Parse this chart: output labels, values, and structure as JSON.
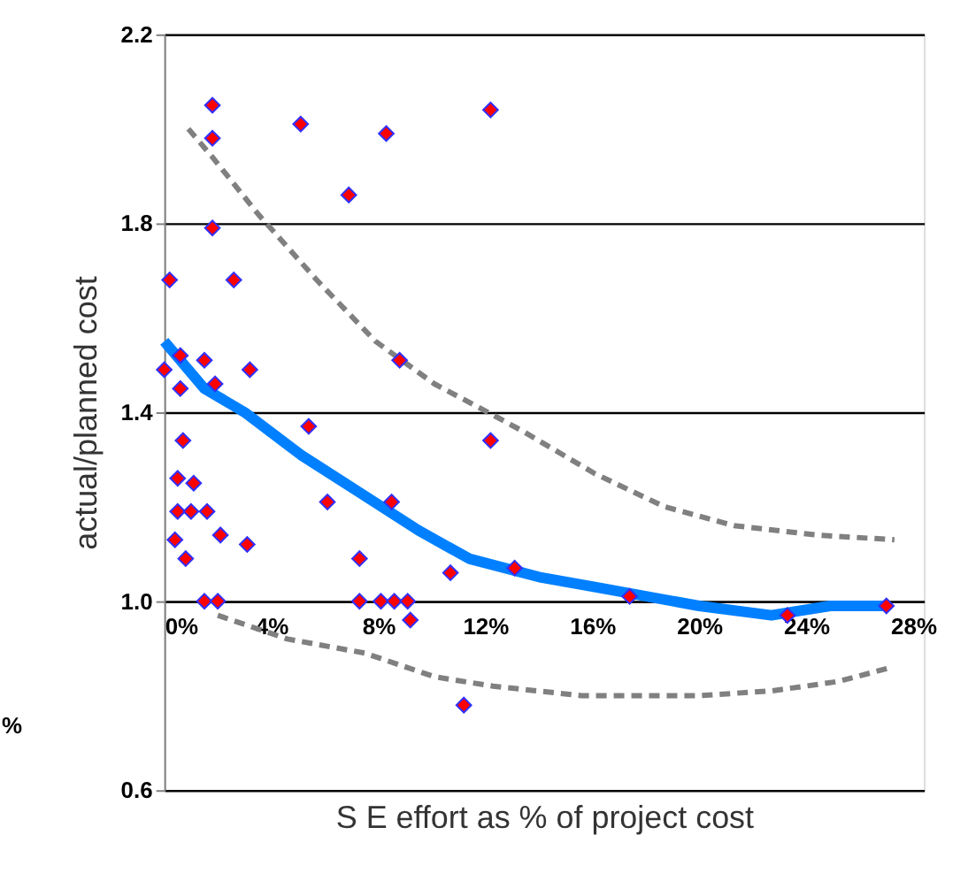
{
  "chart_data": {
    "type": "scatter",
    "xlabel": "S E  effort as % of project cost",
    "ylabel": "actual/planned cost",
    "xlim": [
      0,
      28.4
    ],
    "ylim": [
      0.6,
      2.2
    ],
    "xticks": [
      {
        "value": 0,
        "label": "0%"
      },
      {
        "value": 4,
        "label": "4%"
      },
      {
        "value": 8,
        "label": "8%"
      },
      {
        "value": 12,
        "label": "12%"
      },
      {
        "value": 16,
        "label": "16%"
      },
      {
        "value": 20,
        "label": "20%"
      },
      {
        "value": 24,
        "label": "24%"
      },
      {
        "value": 28,
        "label": "28%"
      }
    ],
    "yticks": [
      0.6,
      {
        "value": 1.0,
        "label": "1.0"
      },
      1.4,
      1.8,
      2.2
    ],
    "grid": "y",
    "marker": "diamond",
    "annotations": [
      "%"
    ],
    "series": [
      {
        "color": "#ff0000",
        "x": [
          1.8,
          1.8,
          5.1,
          8.3,
          12.2,
          6.9,
          1.8,
          0.2,
          2.6,
          0.6,
          1.5,
          0.0,
          3.2,
          8.8,
          0.6,
          1.9,
          5.4,
          0.7,
          12.2,
          0.5,
          1.1,
          0.5,
          1.0,
          1.6,
          6.1,
          8.5,
          0.4,
          2.1,
          3.1,
          0.8,
          7.3,
          10.7,
          13.1,
          1.5,
          2.0,
          7.3,
          8.1,
          8.6,
          9.1,
          9.2,
          11.2,
          17.4,
          23.3,
          27.0
        ],
        "values": [
          2.05,
          1.98,
          2.01,
          1.99,
          2.04,
          1.86,
          1.79,
          1.68,
          1.68,
          1.52,
          1.51,
          1.49,
          1.49,
          1.51,
          1.45,
          1.46,
          1.37,
          1.34,
          1.34,
          1.26,
          1.25,
          1.19,
          1.19,
          1.19,
          1.21,
          1.21,
          1.13,
          1.14,
          1.12,
          1.09,
          1.09,
          1.06,
          1.07,
          1.0,
          1.0,
          1.0,
          1.0,
          1.0,
          1.0,
          0.96,
          0.78,
          1.01,
          0.97,
          0.99
        ]
      },
      {
        "type": "line",
        "color": "#0080ff",
        "line_style": "solid",
        "marker": "none",
        "x": [
          0,
          1.5,
          3.0,
          5.1,
          7.3,
          9.5,
          11.4,
          14.1,
          16.1,
          20.0,
          22.7,
          24.9,
          27.0
        ],
        "values": [
          1.55,
          1.45,
          1.4,
          1.31,
          1.23,
          1.15,
          1.09,
          1.05,
          1.03,
          0.99,
          0.97,
          0.99,
          0.99
        ]
      },
      {
        "type": "line",
        "color": "#808080",
        "line_style": "dashed",
        "marker": "none",
        "x": [
          0.9,
          1.8,
          3.5,
          5.7,
          7.9,
          10.1,
          12.1,
          13.4,
          16.1,
          18.7,
          21.3,
          24.4,
          27.3
        ],
        "values": [
          2.0,
          1.94,
          1.82,
          1.68,
          1.55,
          1.46,
          1.4,
          1.36,
          1.27,
          1.2,
          1.16,
          1.14,
          1.13
        ]
      },
      {
        "type": "line",
        "color": "#808080",
        "line_style": "dashed",
        "marker": "none",
        "x": [
          2.0,
          4.6,
          7.5,
          10.1,
          12.3,
          15.6,
          20.0,
          22.7,
          25.2,
          27.2
        ],
        "values": [
          0.97,
          0.92,
          0.89,
          0.84,
          0.82,
          0.8,
          0.8,
          0.81,
          0.83,
          0.86
        ]
      }
    ]
  }
}
